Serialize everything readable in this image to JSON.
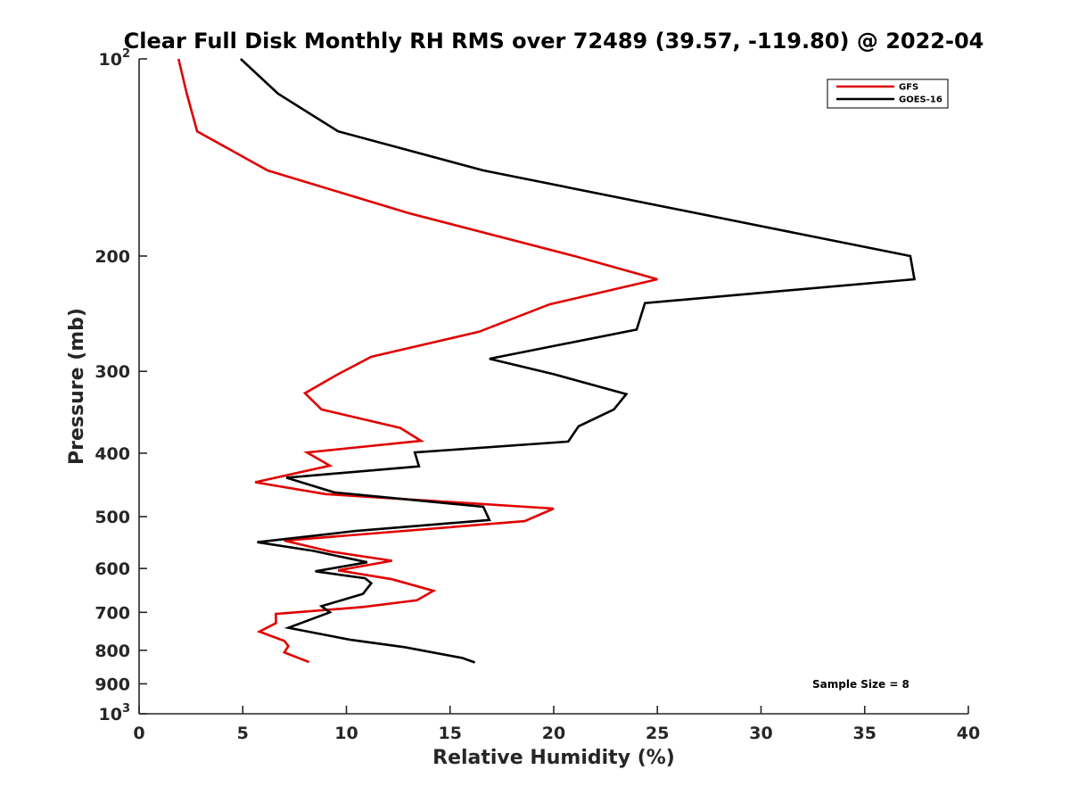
{
  "chart_data": {
    "type": "line",
    "title": "Clear Full Disk Monthly RH RMS over 72489 (39.57, -119.80) @ 2022-04",
    "xlabel": "Relative Humidity (%)",
    "ylabel": "Pressure (mb)",
    "xlim": [
      0,
      40
    ],
    "ylim": [
      100,
      1000
    ],
    "yscale": "log",
    "yreversed": true,
    "grid": false,
    "legend_position": "top-right",
    "x_ticks": [
      "0",
      "5",
      "10",
      "15",
      "20",
      "25",
      "30",
      "35",
      "40"
    ],
    "y_ticks": [
      {
        "value": 100,
        "label": "10",
        "sup": "2"
      },
      {
        "value": 200,
        "label": "200",
        "sup": ""
      },
      {
        "value": 300,
        "label": "300",
        "sup": ""
      },
      {
        "value": 400,
        "label": "400",
        "sup": ""
      },
      {
        "value": 500,
        "label": "500",
        "sup": ""
      },
      {
        "value": 600,
        "label": "600",
        "sup": ""
      },
      {
        "value": 700,
        "label": "700",
        "sup": ""
      },
      {
        "value": 800,
        "label": "800",
        "sup": ""
      },
      {
        "value": 900,
        "label": "900",
        "sup": ""
      },
      {
        "value": 1000,
        "label": "10",
        "sup": "3"
      }
    ],
    "series": [
      {
        "name": "GFS",
        "color": "#e00000",
        "x": [
          1.9,
          2.3,
          2.8,
          6.2,
          13.0,
          21.0,
          25.0,
          19.8,
          16.4,
          11.2,
          9.6,
          8.0,
          8.8,
          12.6,
          13.6,
          8.1,
          9.2,
          5.6,
          9.0,
          20.0,
          18.6,
          7.0,
          9.2,
          12.2,
          9.6,
          12.2,
          14.2,
          13.4,
          10.8,
          6.6,
          6.6,
          5.8,
          7.0,
          7.2,
          7.0,
          8.2
        ],
        "y": [
          100,
          113,
          129,
          148,
          172,
          200,
          217,
          237,
          261,
          285,
          303,
          324,
          343,
          366,
          383,
          399,
          418,
          443,
          462,
          486,
          508,
          544,
          565,
          584,
          604,
          623,
          649,
          671,
          687,
          704,
          727,
          749,
          774,
          788,
          806,
          834
        ]
      },
      {
        "name": "GOES-16",
        "color": "#000000",
        "x": [
          4.9,
          6.7,
          9.6,
          16.6,
          37.2,
          37.4,
          24.4,
          24.0,
          16.9,
          20.0,
          23.5,
          22.9,
          21.2,
          20.7,
          13.3,
          13.5,
          7.1,
          9.4,
          16.6,
          16.9,
          10.4,
          5.7,
          8.4,
          11.0,
          8.5,
          10.9,
          11.2,
          10.8,
          8.8,
          9.2,
          7.2,
          10.2,
          12.8,
          15.6,
          16.2
        ],
        "y": [
          100,
          113,
          129,
          148,
          200,
          217,
          236,
          259,
          287,
          303,
          325,
          343,
          364,
          384,
          399,
          419,
          436,
          459,
          483,
          506,
          526,
          547,
          564,
          587,
          606,
          621,
          632,
          656,
          685,
          700,
          739,
          771,
          791,
          822,
          835
        ]
      }
    ],
    "annotations": [
      "Sample Size = 8"
    ]
  }
}
